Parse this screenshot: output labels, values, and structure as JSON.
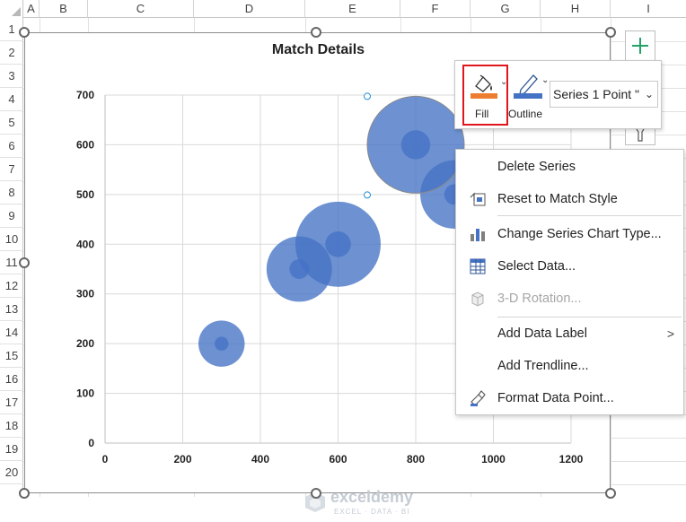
{
  "spreadsheet": {
    "columns": [
      "A",
      "B",
      "C",
      "D",
      "E",
      "F",
      "G",
      "H",
      "I"
    ],
    "rows": [
      "1",
      "2",
      "3",
      "4",
      "5",
      "6",
      "7",
      "8",
      "9",
      "10",
      "11",
      "12",
      "13",
      "14",
      "15",
      "16",
      "17",
      "18",
      "19",
      "20"
    ]
  },
  "chart": {
    "title": "Match Details",
    "watermark": {
      "name": "exceldemy",
      "tagline": "EXCEL · DATA · BI"
    },
    "bubble_color": "#4472C4",
    "selected_point_index": 5
  },
  "chart_data": {
    "type": "scatter",
    "subtype": "bubble",
    "title": "Match Details",
    "xlim": [
      0,
      1200
    ],
    "ylim": [
      0,
      700
    ],
    "x_ticks": [
      "0",
      "200",
      "400",
      "600",
      "800",
      "1000",
      "1200"
    ],
    "y_ticks": [
      "0",
      "100",
      "200",
      "300",
      "400",
      "500",
      "600",
      "700"
    ],
    "grid": true,
    "series": [
      {
        "points": [
          {
            "x": 300,
            "y": 200,
            "size": 5
          },
          {
            "x": 500,
            "y": 350,
            "size": 10
          },
          {
            "x": 600,
            "y": 400,
            "size": 17
          },
          {
            "x": 900,
            "y": 500,
            "size": 11
          },
          {
            "x": 800,
            "y": 600,
            "size": 22
          }
        ]
      }
    ]
  },
  "mini_toolbar": {
    "fill_label": "Fill",
    "outline_label": "Outline",
    "series_select_value": "Series 1 Point \""
  },
  "context_menu": {
    "items": [
      {
        "label": "Delete Series",
        "icon": "none",
        "disabled": false
      },
      {
        "label": "Reset to Match Style",
        "icon": "reset-style-icon",
        "disabled": false
      },
      {
        "label": "Change Series Chart Type...",
        "icon": "chart-type-icon",
        "disabled": false
      },
      {
        "label": "Select Data...",
        "icon": "select-data-icon",
        "disabled": false
      },
      {
        "label": "3-D Rotation...",
        "icon": "rotation-3d-icon",
        "disabled": true
      },
      {
        "label": "Add Data Label",
        "icon": "none",
        "disabled": false,
        "submenu": true
      },
      {
        "label": "Add Trendline...",
        "icon": "none",
        "disabled": false
      },
      {
        "label": "Format Data Point...",
        "icon": "format-icon",
        "disabled": false
      }
    ]
  },
  "colors": {
    "accent_red": "#E0161C",
    "fill_orange": "#ED7D31",
    "outline_blue": "#4472C4",
    "add_green": "#21A366"
  }
}
